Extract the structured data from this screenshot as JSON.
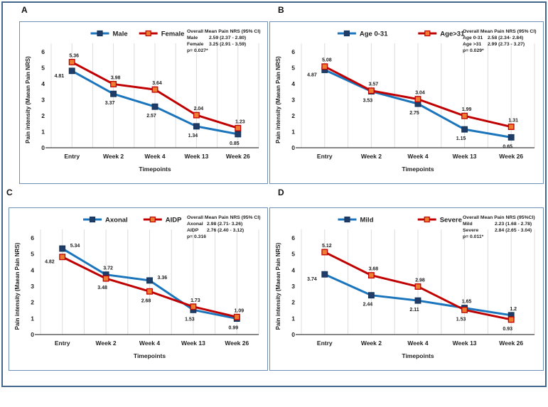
{
  "figure": {
    "background": "#ffffff",
    "outer_border_color": "#44678c",
    "panel_border_color": "#6e8fb5",
    "grid_color": "#dcdcdc",
    "axis_color": "#404040"
  },
  "chart_data": [
    {
      "panel": "A",
      "type": "line",
      "categories": [
        "Entry",
        "Week 2",
        "Week 4",
        "Week 13",
        "Week 26"
      ],
      "xlabel": "Timepoints",
      "ylabel": "Pain intensity (Maean Pain NRS)",
      "ylim": [
        0,
        6
      ],
      "yticks": [
        0,
        1,
        2,
        3,
        4,
        5,
        6
      ],
      "grid": "vertical-light",
      "legend_position": "top-center",
      "legend_gap": 16,
      "series": [
        {
          "name": "Male",
          "line_color": "#1b75bc",
          "marker_fill": "#1f3d68",
          "marker_stroke": "#17365d",
          "values": [
            4.81,
            3.37,
            2.57,
            1.34,
            0.85
          ],
          "label_sides": [
            "left",
            "below",
            "below",
            "below",
            "below"
          ]
        },
        {
          "name": "Female",
          "line_color": "#c00000",
          "marker_fill": "#ed7d31",
          "marker_stroke": "#c00000",
          "values": [
            5.36,
            3.98,
            3.64,
            2.04,
            1.23
          ],
          "label_sides": [
            "above",
            "above",
            "above",
            "above",
            "above"
          ]
        }
      ],
      "annotation": {
        "title": "Overall Mean Pain NRS (95% CI)",
        "rows": [
          [
            "Male",
            "2.59 (2.37 - 2.80)"
          ],
          [
            "Female",
            "3.25 (2.91 - 3.59)"
          ]
        ],
        "p_value": "p= 0.027*",
        "value_col_offset": 31
      }
    },
    {
      "panel": "B",
      "type": "line",
      "categories": [
        "Entry",
        "Week 2",
        "Week 4",
        "Week 13",
        "Week 26"
      ],
      "xlabel": "Timepoints",
      "ylabel": "Pain intensity (Maean Pain NRS)",
      "ylim": [
        0,
        6
      ],
      "yticks": [
        0,
        1,
        2,
        3,
        4,
        5,
        6
      ],
      "grid": "vertical-light",
      "legend_position": "top-center",
      "legend_gap": 40,
      "series": [
        {
          "name": "Age 0-31",
          "line_color": "#1b75bc",
          "marker_fill": "#1f3d68",
          "marker_stroke": "#17365d",
          "values": [
            4.87,
            3.53,
            2.75,
            1.15,
            0.65
          ],
          "label_sides": [
            "left",
            "below",
            "below",
            "below",
            "below"
          ]
        },
        {
          "name": "Age>31",
          "line_color": "#c00000",
          "marker_fill": "#ed7d31",
          "marker_stroke": "#c00000",
          "values": [
            5.08,
            3.57,
            3.04,
            1.99,
            1.31
          ],
          "label_sides": [
            "above",
            "above",
            "above",
            "above",
            "above"
          ]
        }
      ],
      "annotation": {
        "title": "Overall Mean Pain NRS (95% CI)",
        "rows": [
          [
            "Age 0-31",
            "2.58 (2.34- 2.84)"
          ],
          [
            "Age >31",
            "2.99 (2.73 - 3.27)"
          ]
        ],
        "p_value": "p= 0.029*",
        "value_col_offset": 35
      }
    },
    {
      "panel": "C",
      "type": "line",
      "categories": [
        "Entry",
        "Week 2",
        "Week 4",
        "Week 13",
        "Week 26"
      ],
      "xlabel": "Timepoints",
      "ylabel": "Pain intensity (Maean Pain NRS)",
      "ylim": [
        0,
        6
      ],
      "yticks": [
        0,
        1,
        2,
        3,
        4,
        5,
        6
      ],
      "grid": "vertical-light",
      "legend_position": "top-center",
      "legend_gap": 22,
      "series": [
        {
          "name": "Axonal",
          "line_color": "#1b75bc",
          "marker_fill": "#1f3d68",
          "marker_stroke": "#17365d",
          "values": [
            5.34,
            3.72,
            3.36,
            1.53,
            0.99
          ],
          "label_sides": [
            "right",
            "above",
            "right",
            "below",
            "below"
          ]
        },
        {
          "name": "AIDP",
          "line_color": "#c00000",
          "marker_fill": "#ed7d31",
          "marker_stroke": "#c00000",
          "values": [
            4.82,
            3.48,
            2.68,
            1.73,
            1.09
          ],
          "label_sides": [
            "left",
            "below",
            "below",
            "above",
            "above"
          ]
        }
      ],
      "annotation": {
        "title": "Overall Mean Pain NRS (95% CI)",
        "rows": [
          [
            "Axonal",
            "2.98 (2.71- 3.26)"
          ],
          [
            "AIDP",
            "2.76 (2.40 - 3.12)"
          ]
        ],
        "p_value": "p= 0.316",
        "value_col_offset": 28
      }
    },
    {
      "panel": "D",
      "type": "line",
      "categories": [
        "Entry",
        "Week 2",
        "Week 4",
        "Week 13",
        "Week 26"
      ],
      "xlabel": "Timepoints",
      "ylabel": "Pain intensity (Maean Pain NRS)",
      "ylim": [
        0,
        6
      ],
      "yticks": [
        0,
        1,
        2,
        3,
        4,
        5,
        6
      ],
      "grid": "vertical-light",
      "legend_position": "top-center",
      "legend_gap": 60,
      "series": [
        {
          "name": "Mild",
          "line_color": "#1b75bc",
          "marker_fill": "#1f3d68",
          "marker_stroke": "#17365d",
          "values": [
            3.74,
            2.44,
            2.11,
            1.65,
            1.2
          ],
          "label_sides": [
            "left",
            "below",
            "below",
            "above",
            "above"
          ]
        },
        {
          "name": "Severe",
          "line_color": "#c00000",
          "marker_fill": "#ed7d31",
          "marker_stroke": "#c00000",
          "values": [
            5.12,
            3.68,
            2.98,
            1.53,
            0.93
          ],
          "label_sides": [
            "above",
            "above",
            "above",
            "below",
            "below"
          ]
        }
      ],
      "annotation": {
        "title": "Overall Mean Pain NRS (95%CI)",
        "rows": [
          [
            "Mild",
            "2.23 (1.68 - 2.78)"
          ],
          [
            "Severe",
            "2.84 (2.65 - 3.04)"
          ]
        ],
        "p_value": "p= 0.011*",
        "value_col_offset": 45
      }
    }
  ]
}
